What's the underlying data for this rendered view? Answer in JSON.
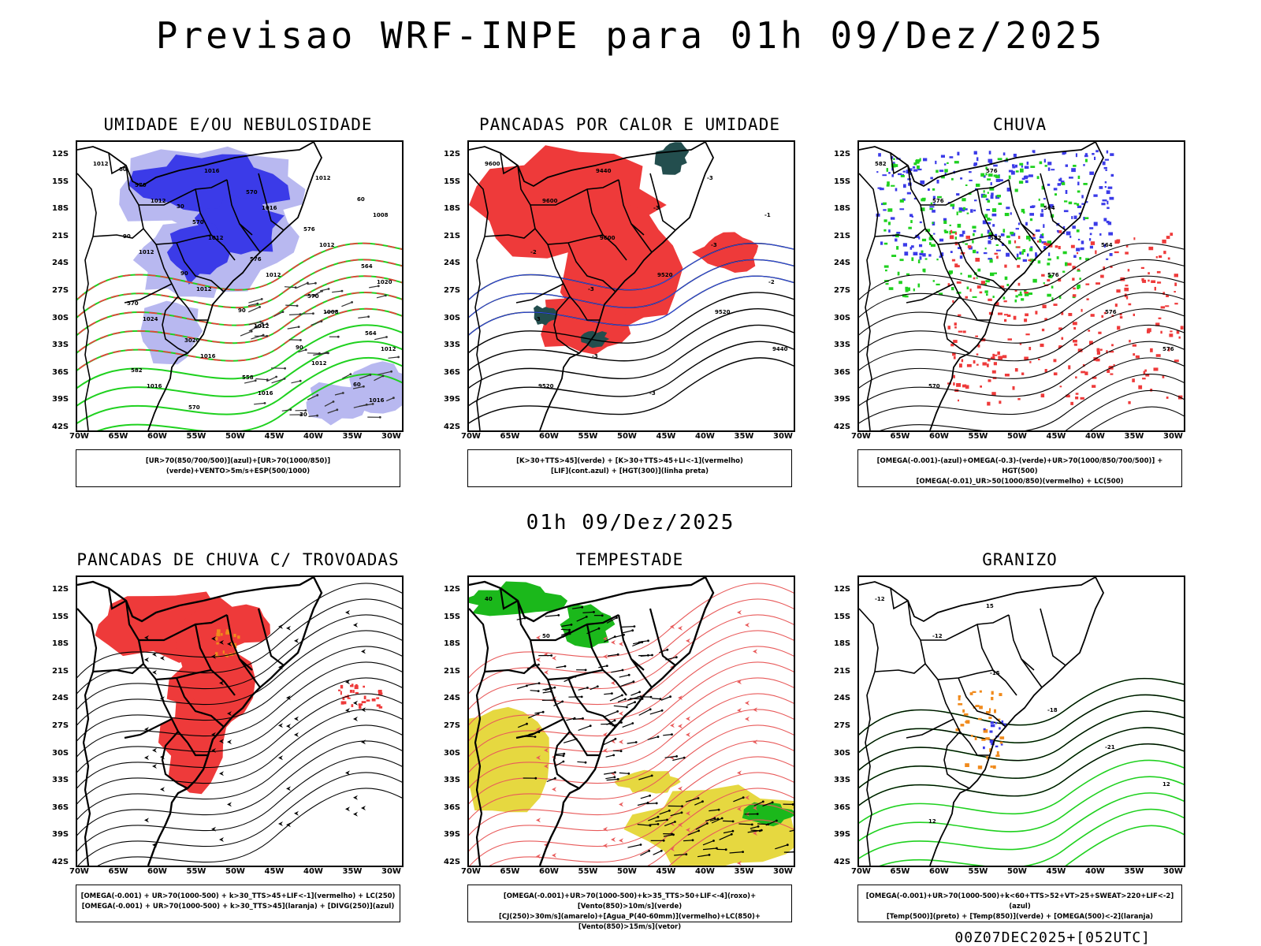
{
  "title": "Previsao WRF-INPE  para 01h 09/Dez/2025",
  "mid_time": "01h 09/Dez/2025",
  "run_stamp": "00Z07DEC2025+[052UTC]",
  "lat_labels": [
    "12S",
    "15S",
    "18S",
    "21S",
    "24S",
    "27S",
    "30S",
    "33S",
    "36S",
    "39S",
    "42S"
  ],
  "lon_labels": [
    "70W",
    "65W",
    "60W",
    "55W",
    "50W",
    "45W",
    "40W",
    "35W",
    "30W"
  ],
  "colors": {
    "blue": "#3b3be8",
    "lightblue": "#b8b8f0",
    "green": "#1fd11f",
    "red": "#ee3a3a",
    "orange": "#f08a1c",
    "yellow": "#e6d840",
    "darkteal": "#234e4e"
  },
  "panels": [
    {
      "id": "umidade",
      "title": "UMIDADE E/OU NEBULOSIDADE",
      "legend_lines": [
        "[UR>70(850/700/500)](azul)+[UR>70(1000/850)](verde)+VENTO>5m/s+ESP(500/1000)"
      ],
      "contour_labels": [
        "1012",
        "1012",
        "1012",
        "1012",
        "1008",
        "1012",
        "1016",
        "1016",
        "1016",
        "1012",
        "1020",
        "1024",
        "1016",
        "1016",
        "1012",
        "1008",
        "1012",
        "1012",
        "1012",
        "1012",
        "1016",
        "570",
        "570",
        "576",
        "570",
        "564",
        "582",
        "570",
        "570",
        "576",
        "564",
        "570",
        "3020",
        "558",
        "30",
        "60",
        "90",
        "90",
        "90",
        "90",
        "60",
        "60",
        "30"
      ]
    },
    {
      "id": "pancadas-calor",
      "title": "PANCADAS POR CALOR E UMIDADE",
      "legend_lines": [
        "[K>30+TTS>45](verde) + [K>30+TTS>45+LI<-1](vermelho)",
        "[LIF](cont.azul) + [HGT(300)](linha preta)"
      ],
      "contour_labels": [
        "9600",
        "9600",
        "9600",
        "9520",
        "9520",
        "9440",
        "9520",
        "9440",
        "-3",
        "-3",
        "-2",
        "-3",
        "-3",
        "-3",
        "-3",
        "-1",
        "-2",
        "-3"
      ]
    },
    {
      "id": "chuva",
      "title": "CHUVA",
      "legend_lines": [
        "[OMEGA(-0.001)-(azul)+OMEGA(-0.3)-(verde)+UR>70(1000/850/700/500)] + HGT(500)",
        "[OMEGA(-0.01)_UR>50(1000/850)(vermelho) + LC(500)"
      ],
      "contour_labels": [
        "582",
        "576",
        "582",
        "576",
        "576",
        "576",
        "570",
        "576",
        "564",
        "564"
      ]
    },
    {
      "id": "trovoadas",
      "title": "PANCADAS DE CHUVA C/ TROVOADAS",
      "legend_lines": [
        "[OMEGA(-0.001) + UR>70(1000-500) + k>30_TTS>45+LIF<-1](vermelho) + LC(250)",
        "[OMEGA(-0.001) + UR>70(1000-500) + k>30_TTS>45](laranja) + [DIVG(250)](azul)"
      ],
      "contour_labels": []
    },
    {
      "id": "tempestade",
      "title": "TEMPESTADE",
      "legend_lines": [
        "[OMEGA(-0.001)+UR>70(1000-500)+k>35_TTS>50+LIF<-4](roxo)+[Vento(850)>10m/s](verde)",
        "[CJ(250)>30m/s](amarelo)+[Agua_P(40-60mm)](vermelho)+LC(850)+[Vento(850)>15m/s](vetor)"
      ],
      "contour_labels": [
        "40",
        "50"
      ]
    },
    {
      "id": "granizo",
      "title": "GRANIZO",
      "legend_lines": [
        "[OMEGA(-0.001)+UR>70(1000-500)+k<60+TTS>52+VT>25+SWEAT>220+LIF<-2](azul)",
        "[Temp(500)](preto) + [Temp(850)](verde) + [OMEGA(500)<-2](laranja)"
      ],
      "contour_labels": [
        "-12",
        "-12",
        "-15",
        "-18",
        "-21",
        "12",
        "12",
        "15"
      ]
    }
  ]
}
